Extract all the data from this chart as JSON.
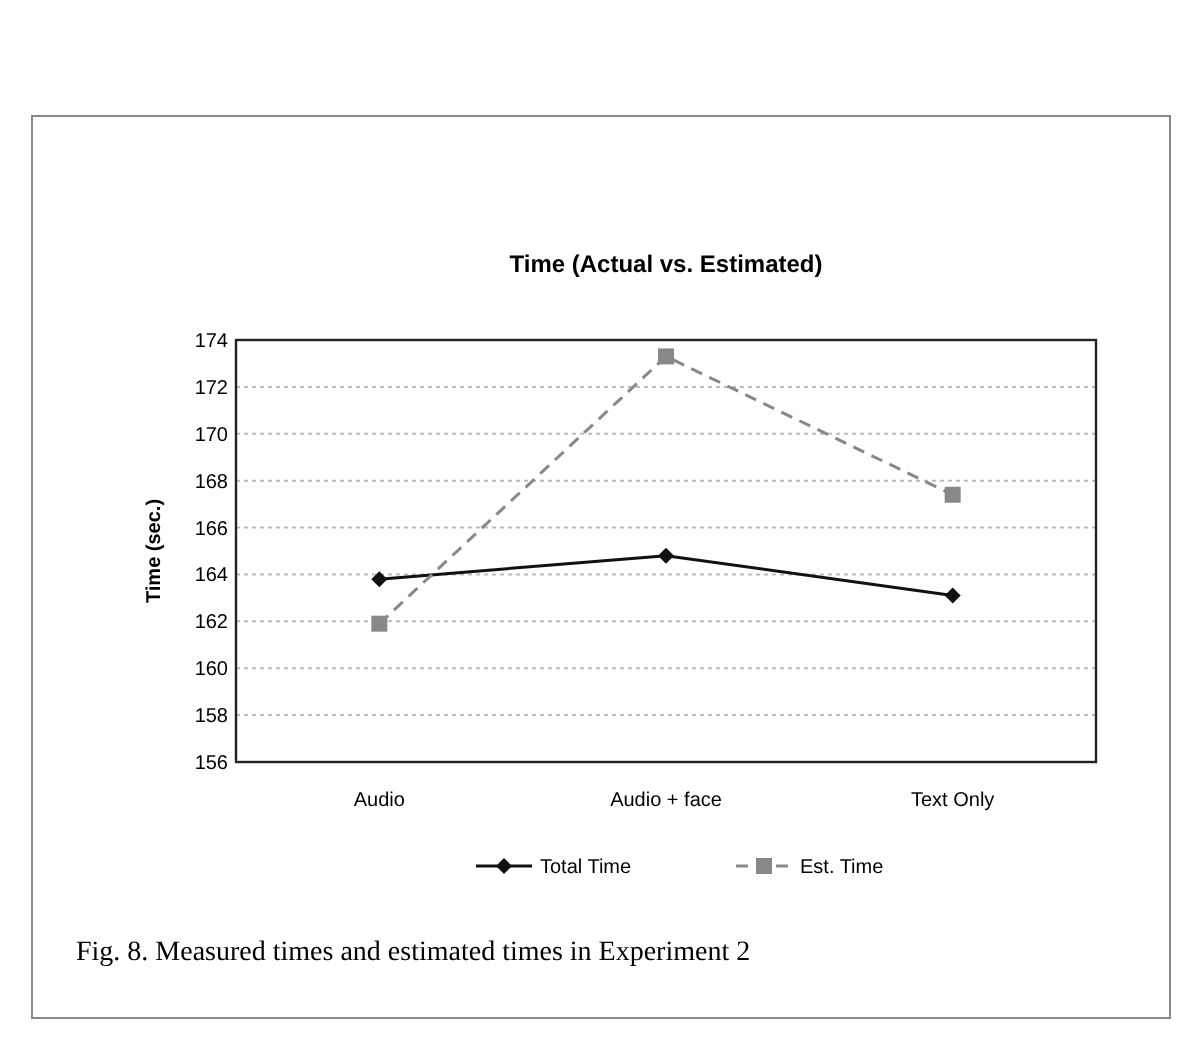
{
  "chart_data": {
    "type": "line",
    "title": "Time (Actual vs. Estimated)",
    "ylabel": "Time (sec.)",
    "categories": [
      "Audio",
      "Audio + face",
      "Text Only"
    ],
    "series": [
      {
        "name": "Total Time",
        "color": "#111111",
        "values": [
          163.8,
          164.8,
          163.1
        ],
        "marker": "diamond",
        "line_style": "solid"
      },
      {
        "name": "Est. Time",
        "color": "#888888",
        "values": [
          161.9,
          173.3,
          167.4
        ],
        "marker": "square",
        "line_style": "dashed"
      }
    ],
    "ylim": [
      156,
      174
    ],
    "yticks": [
      156,
      158,
      160,
      162,
      164,
      166,
      168,
      170,
      172,
      174
    ],
    "grid": "y",
    "legend": "bottom",
    "annotations": [
      "Fig. 8. Measured times and estimated times in Experiment 2"
    ]
  }
}
